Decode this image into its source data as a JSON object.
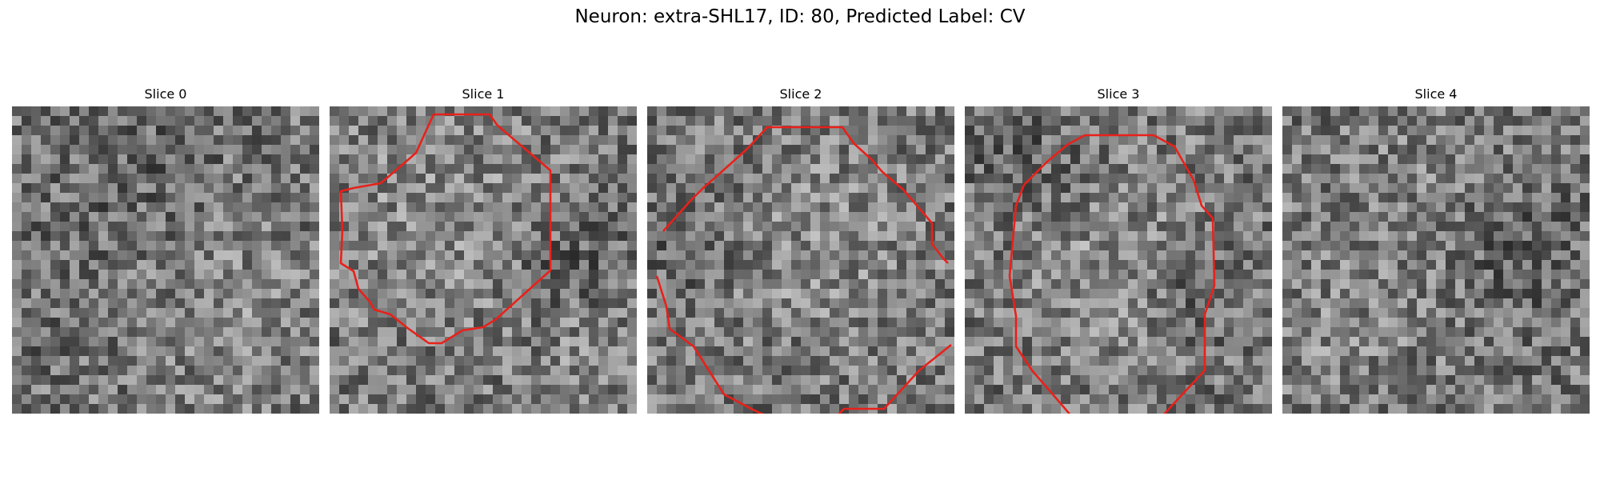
{
  "figure": {
    "title": "Neuron: extra-SHL17, ID: 80, Predicted Label: CV",
    "contour_color": "#e8211a",
    "panels": [
      {
        "title": "Slice 0",
        "seed": 11,
        "has_contour": false
      },
      {
        "title": "Slice 1",
        "seed": 23,
        "has_contour": true
      },
      {
        "title": "Slice 2",
        "seed": 37,
        "has_contour": true
      },
      {
        "title": "Slice 3",
        "seed": 51,
        "has_contour": true
      },
      {
        "title": "Slice 4",
        "seed": 67,
        "has_contour": false
      }
    ]
  }
}
